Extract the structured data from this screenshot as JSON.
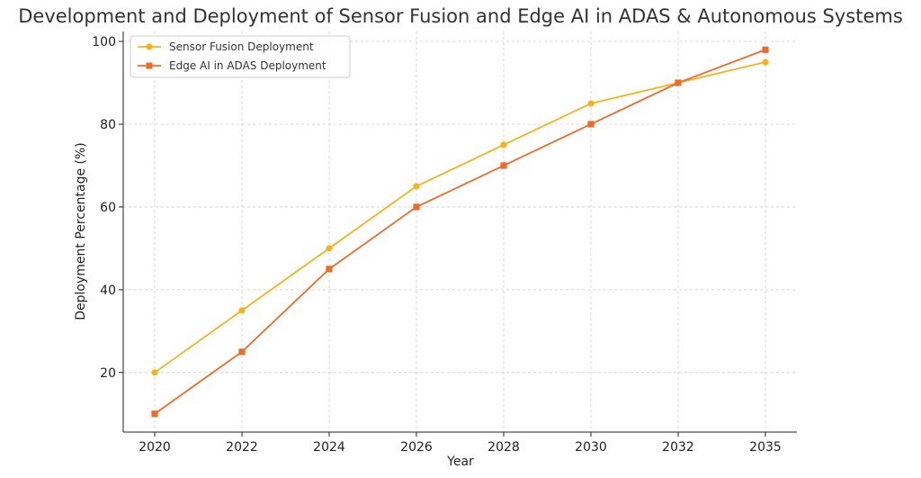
{
  "chart_data": {
    "type": "line",
    "title": "Development and Deployment of Sensor Fusion and Edge AI in ADAS & Autonomous Systems",
    "xlabel": "Year",
    "ylabel": "Deployment Percentage (%)",
    "categories": [
      "2020",
      "2022",
      "2024",
      "2026",
      "2028",
      "2030",
      "2032",
      "2035"
    ],
    "series": [
      {
        "name": "Sensor Fusion Deployment",
        "color": "#f7b21b",
        "marker": "circle",
        "values": [
          20,
          35,
          50,
          65,
          75,
          85,
          90,
          95
        ]
      },
      {
        "name": "Edge AI in ADAS Deployment",
        "color": "#ef6b2a",
        "marker": "square",
        "values": [
          10,
          25,
          45,
          60,
          70,
          80,
          90,
          98
        ]
      }
    ],
    "yticks": [
      20,
      40,
      60,
      80,
      100
    ],
    "ylim": [
      5.6,
      102.4
    ],
    "grid": true,
    "legend_position": "top-left"
  }
}
